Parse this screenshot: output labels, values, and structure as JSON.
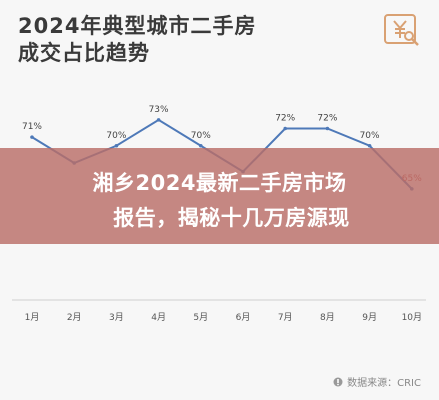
{
  "header": {
    "title_line1": "2024年典型城市二手房",
    "title_line2": "成交占比趋势"
  },
  "banner": {
    "line1": "湘乡2024最新二手房市场",
    "line2": "报告，揭秘十几万房源现"
  },
  "source": {
    "text": "数据来源：CRIC"
  },
  "colors": {
    "line": "#4e79b8",
    "banner": "#ba6e68"
  },
  "chart_data": {
    "type": "line",
    "categories": [
      "1月",
      "2月",
      "3月",
      "4月",
      "5月",
      "6月",
      "7月",
      "8月",
      "9月",
      "10月"
    ],
    "values": [
      71,
      68,
      70,
      73,
      70,
      67,
      72,
      72,
      70,
      65
    ],
    "labels": [
      "71%",
      "",
      "70%",
      "73%",
      "70%",
      "",
      "72%",
      "72%",
      "70%",
      "65%"
    ],
    "ylim": [
      60,
      76
    ],
    "grid": false
  }
}
